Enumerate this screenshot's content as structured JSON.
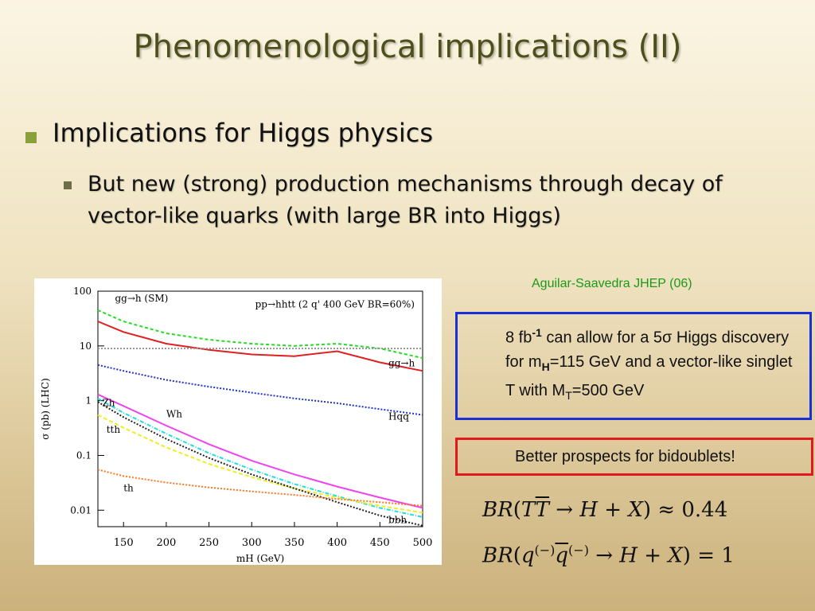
{
  "slide": {
    "title": "Phenomenological implications (II)",
    "bullet1": "Implications for Higgs physics",
    "bullet2": "But new (strong) production mechanisms through decay of vector-like quarks (with large BR into Higgs)",
    "citation": "Aguilar-Saavedra JHEP (06)",
    "box1": {
      "part1": "8 fb",
      "sup1": "-1",
      "part2": " can allow for a 5σ Higgs discovery for m",
      "sub1": "H",
      "part3": "=115 GeV  and a vector-like singlet T with M",
      "sub2": "T",
      "part4": "=500 GeV"
    },
    "box2": "Better prospects for bidoublets!",
    "eq1_value": "0.44",
    "eq2_value": "1"
  },
  "chart_data": {
    "type": "line",
    "ylabel": "σ (pb) (LHC)",
    "xlabel": "mH (GeV)",
    "xlim": [
      120,
      500
    ],
    "ylim": [
      0.005,
      100
    ],
    "yscale": "log",
    "xticks": [
      "150",
      "200",
      "250",
      "300",
      "350",
      "400",
      "450",
      "500"
    ],
    "yticks": [
      "100",
      "10",
      "1",
      "0.1",
      "0.01"
    ],
    "annotation_top": "pp→hhtt (2 q' 400 GeV BR=60%)",
    "annotation_sm": "gg→h (SM)",
    "x": [
      120,
      150,
      200,
      250,
      300,
      350,
      400,
      450,
      500
    ],
    "series": [
      {
        "name": "gg→h (SM)",
        "color": "#22dd22",
        "dash": "4,3",
        "values": [
          45,
          28,
          17,
          13,
          11,
          10,
          11,
          9,
          6
        ]
      },
      {
        "name": "gg→h",
        "color": "#e02020",
        "dash": "",
        "values": [
          28,
          18,
          11,
          8.5,
          7,
          6.5,
          8,
          5,
          3.5
        ]
      },
      {
        "name": "pp→hhtt",
        "color": "#999999",
        "dash": "2,2",
        "values": [
          9,
          9,
          9,
          9,
          9,
          9,
          9,
          9,
          9
        ]
      },
      {
        "name": "Hqq",
        "color": "#2233cc",
        "dash": "2,2",
        "values": [
          4.5,
          3.5,
          2.4,
          1.8,
          1.4,
          1.1,
          0.9,
          0.7,
          0.55
        ]
      },
      {
        "name": "Wh",
        "color": "#ee44ee",
        "dash": "",
        "values": [
          1.3,
          0.8,
          0.35,
          0.16,
          0.08,
          0.045,
          0.027,
          0.017,
          0.011
        ]
      },
      {
        "name": "Zh",
        "color": "#22dddd",
        "dash": "5,2,1,2",
        "values": [
          1.1,
          0.6,
          0.25,
          0.11,
          0.055,
          0.03,
          0.018,
          0.011,
          0.0075
        ]
      },
      {
        "name": "tth",
        "color": "#eeee22",
        "dash": "5,3",
        "values": [
          0.55,
          0.32,
          0.14,
          0.07,
          0.04,
          0.025,
          0.017,
          0.012,
          0.009
        ]
      },
      {
        "name": "bbh",
        "color": "#222222",
        "dash": "2,2",
        "values": [
          0.95,
          0.5,
          0.2,
          0.09,
          0.045,
          0.025,
          0.014,
          0.008,
          0.0052
        ]
      },
      {
        "name": "th",
        "color": "#ff7722",
        "dash": "2,2",
        "values": [
          0.055,
          0.042,
          0.032,
          0.026,
          0.022,
          0.019,
          0.016,
          0.014,
          0.012
        ]
      }
    ],
    "labels": [
      {
        "text": "gg→h",
        "x": 460,
        "y": 4.2
      },
      {
        "text": "Hqq",
        "x": 460,
        "y": 0.45
      },
      {
        "text": "Wh",
        "x": 200,
        "y": 0.5
      },
      {
        "text": "Zh",
        "x": 125,
        "y": 0.8
      },
      {
        "text": "tth",
        "x": 130,
        "y": 0.26
      },
      {
        "text": "th",
        "x": 150,
        "y": 0.022
      },
      {
        "text": "bbh",
        "x": 460,
        "y": 0.0058
      }
    ]
  }
}
